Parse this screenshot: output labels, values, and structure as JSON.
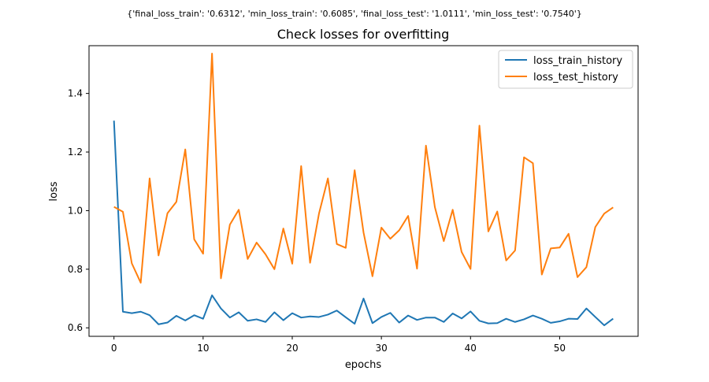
{
  "chart_data": {
    "type": "line",
    "suptitle": "{'final_loss_train': '0.6312', 'min_loss_train': '0.6085', 'final_loss_test': '1.0111', 'min_loss_test': '0.7540'}",
    "title": "Check losses for overfitting",
    "xlabel": "epochs",
    "ylabel": "loss",
    "xlim": [
      -2.8,
      58.8
    ],
    "ylim": [
      0.571,
      1.563
    ],
    "xticks": [
      0,
      10,
      20,
      30,
      40,
      50
    ],
    "yticks": [
      0.6,
      0.8,
      1.0,
      1.2,
      1.4
    ],
    "xtick_labels": [
      "0",
      "10",
      "20",
      "30",
      "40",
      "50"
    ],
    "ytick_labels": [
      "0.6",
      "0.8",
      "1.0",
      "1.2",
      "1.4"
    ],
    "legend_position": "top-right",
    "grid": false,
    "x": [
      0,
      1,
      2,
      3,
      4,
      5,
      6,
      7,
      8,
      9,
      10,
      11,
      12,
      13,
      14,
      15,
      16,
      17,
      18,
      19,
      20,
      21,
      22,
      23,
      24,
      25,
      26,
      27,
      28,
      29,
      30,
      31,
      32,
      33,
      34,
      35,
      36,
      37,
      38,
      39,
      40,
      41,
      42,
      43,
      44,
      45,
      46,
      47,
      48,
      49,
      50,
      51,
      52,
      53,
      54,
      55,
      56
    ],
    "series": [
      {
        "name": "loss_train_history",
        "color": "#1f77b4",
        "values": [
          1.307,
          0.655,
          0.65,
          0.655,
          0.643,
          0.612,
          0.618,
          0.641,
          0.625,
          0.643,
          0.631,
          0.711,
          0.666,
          0.635,
          0.653,
          0.624,
          0.629,
          0.62,
          0.653,
          0.626,
          0.65,
          0.635,
          0.639,
          0.637,
          0.645,
          0.659,
          0.636,
          0.614,
          0.7,
          0.616,
          0.637,
          0.651,
          0.618,
          0.642,
          0.627,
          0.635,
          0.635,
          0.62,
          0.649,
          0.632,
          0.656,
          0.624,
          0.615,
          0.616,
          0.631,
          0.62,
          0.629,
          0.642,
          0.631,
          0.617,
          0.622,
          0.631,
          0.63,
          0.666,
          0.637,
          0.6085,
          0.6312
        ]
      },
      {
        "name": "loss_test_history",
        "color": "#ff7f0e",
        "values": [
          1.013,
          0.996,
          0.82,
          0.754,
          1.11,
          0.847,
          0.991,
          1.03,
          1.209,
          0.902,
          0.853,
          1.536,
          0.769,
          0.952,
          1.003,
          0.835,
          0.891,
          0.851,
          0.8,
          0.939,
          0.819,
          1.152,
          0.822,
          0.99,
          1.11,
          0.886,
          0.873,
          1.138,
          0.925,
          0.776,
          0.942,
          0.904,
          0.933,
          0.982,
          0.802,
          1.222,
          1.012,
          0.896,
          1.003,
          0.859,
          0.801,
          1.29,
          0.929,
          0.997,
          0.83,
          0.864,
          1.182,
          1.162,
          0.782,
          0.871,
          0.874,
          0.921,
          0.773,
          0.807,
          0.944,
          0.99,
          1.0111
        ]
      }
    ]
  }
}
